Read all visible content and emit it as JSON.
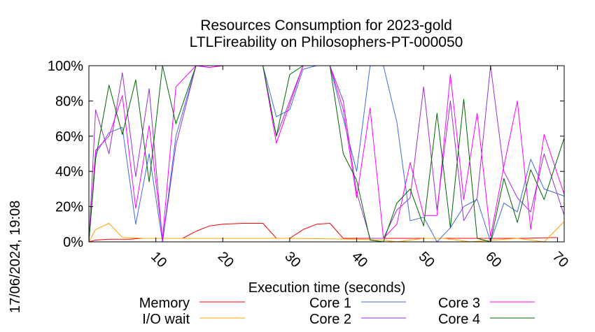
{
  "chart_data": {
    "type": "line",
    "title": [
      "Resources Consumption for 2023-gold",
      "LTLFireability on Philosophers-PT-000050"
    ],
    "xlabel": "Execution time (seconds)",
    "side_label": "17/06/2024, 19:08",
    "xlim": [
      0,
      71
    ],
    "ylim": [
      0,
      100
    ],
    "xticks": [
      10,
      20,
      30,
      40,
      50,
      60,
      70
    ],
    "yticks": [
      0,
      20,
      40,
      60,
      80,
      100
    ],
    "ytick_labels": [
      "0%",
      "20%",
      "40%",
      "60%",
      "80%",
      "100%"
    ],
    "legend_position": "bottom",
    "series": [
      {
        "name": "Memory",
        "color": "#ff0000",
        "points": [
          [
            0,
            0
          ],
          [
            1,
            1
          ],
          [
            3,
            1.5
          ],
          [
            6,
            1.5
          ],
          [
            8,
            2
          ],
          [
            10,
            2
          ],
          [
            12,
            2
          ],
          [
            14,
            2
          ],
          [
            16,
            6
          ],
          [
            18,
            9
          ],
          [
            20,
            10
          ],
          [
            23,
            10.5
          ],
          [
            26,
            10.5
          ],
          [
            28,
            2
          ],
          [
            30,
            2
          ],
          [
            32,
            7
          ],
          [
            34,
            10
          ],
          [
            36,
            10.5
          ],
          [
            38,
            2
          ],
          [
            40,
            2
          ],
          [
            45,
            2
          ],
          [
            50,
            2
          ],
          [
            55,
            2
          ],
          [
            60,
            2
          ],
          [
            65,
            2
          ],
          [
            70,
            2.5
          ]
        ]
      },
      {
        "name": "I/O wait",
        "color": "#ffa500",
        "points": [
          [
            0,
            0
          ],
          [
            1,
            7
          ],
          [
            3,
            10.5
          ],
          [
            5,
            2.5
          ],
          [
            8,
            2
          ],
          [
            12,
            2
          ],
          [
            20,
            2
          ],
          [
            30,
            2
          ],
          [
            40,
            1.5
          ],
          [
            44,
            1
          ],
          [
            46,
            0
          ],
          [
            50,
            2
          ],
          [
            53,
            2
          ],
          [
            57,
            0
          ],
          [
            64,
            2
          ],
          [
            68,
            0
          ],
          [
            71,
            11.5
          ]
        ]
      },
      {
        "name": "Core 1",
        "color": "#4169e1",
        "points": [
          [
            0,
            0
          ],
          [
            1,
            50
          ],
          [
            3,
            62
          ],
          [
            5,
            65
          ],
          [
            7,
            10
          ],
          [
            9,
            50
          ],
          [
            11,
            0
          ],
          [
            13,
            60
          ],
          [
            16,
            100
          ],
          [
            18,
            99
          ],
          [
            20,
            100
          ],
          [
            24,
            100
          ],
          [
            26,
            100
          ],
          [
            28,
            71
          ],
          [
            30,
            75
          ],
          [
            32,
            98
          ],
          [
            34,
            100
          ],
          [
            36,
            100
          ],
          [
            38,
            70
          ],
          [
            40,
            40
          ],
          [
            42,
            100
          ],
          [
            44,
            100
          ],
          [
            46,
            68
          ],
          [
            48,
            12
          ],
          [
            50,
            14
          ],
          [
            52,
            0
          ],
          [
            54,
            8
          ],
          [
            56,
            20
          ],
          [
            58,
            24
          ],
          [
            60,
            0
          ],
          [
            62,
            22
          ],
          [
            64,
            17
          ],
          [
            66,
            47
          ],
          [
            68,
            30
          ],
          [
            71,
            26
          ]
        ]
      },
      {
        "name": "Core 2",
        "color": "#9932cc",
        "points": [
          [
            0,
            0
          ],
          [
            1,
            75
          ],
          [
            3,
            50
          ],
          [
            5,
            96
          ],
          [
            7,
            37
          ],
          [
            9,
            87
          ],
          [
            11,
            0
          ],
          [
            13,
            55
          ],
          [
            16,
            100
          ],
          [
            20,
            100
          ],
          [
            26,
            100
          ],
          [
            28,
            60
          ],
          [
            30,
            80
          ],
          [
            32,
            100
          ],
          [
            36,
            100
          ],
          [
            38,
            80
          ],
          [
            40,
            28
          ],
          [
            42,
            2
          ],
          [
            44,
            2
          ],
          [
            46,
            18
          ],
          [
            48,
            25
          ],
          [
            50,
            88
          ],
          [
            52,
            18
          ],
          [
            54,
            80
          ],
          [
            56,
            12
          ],
          [
            58,
            25
          ],
          [
            60,
            100
          ],
          [
            62,
            40
          ],
          [
            64,
            25
          ],
          [
            66,
            17
          ],
          [
            68,
            50
          ],
          [
            71,
            15
          ]
        ]
      },
      {
        "name": "Core 3",
        "color": "#ff00ff",
        "points": [
          [
            0,
            0
          ],
          [
            1,
            52
          ],
          [
            3,
            60
          ],
          [
            5,
            83
          ],
          [
            7,
            19
          ],
          [
            9,
            66
          ],
          [
            11,
            2
          ],
          [
            13,
            88
          ],
          [
            16,
            100
          ],
          [
            18,
            99
          ],
          [
            20,
            100
          ],
          [
            26,
            100
          ],
          [
            28,
            56
          ],
          [
            30,
            78
          ],
          [
            32,
            100
          ],
          [
            36,
            100
          ],
          [
            38,
            75
          ],
          [
            40,
            25
          ],
          [
            42,
            76
          ],
          [
            44,
            2
          ],
          [
            46,
            10
          ],
          [
            48,
            45
          ],
          [
            50,
            15
          ],
          [
            52,
            15
          ],
          [
            54,
            95
          ],
          [
            56,
            24
          ],
          [
            58,
            73
          ],
          [
            60,
            3
          ],
          [
            62,
            43
          ],
          [
            64,
            80
          ],
          [
            66,
            7
          ],
          [
            68,
            61
          ],
          [
            71,
            27
          ]
        ]
      },
      {
        "name": "Core 4",
        "color": "#006400",
        "points": [
          [
            0,
            0
          ],
          [
            1,
            47
          ],
          [
            3,
            89
          ],
          [
            5,
            61
          ],
          [
            7,
            92
          ],
          [
            9,
            34
          ],
          [
            11,
            100
          ],
          [
            13,
            67
          ],
          [
            16,
            100
          ],
          [
            20,
            100
          ],
          [
            26,
            100
          ],
          [
            28,
            60
          ],
          [
            30,
            95
          ],
          [
            32,
            100
          ],
          [
            36,
            100
          ],
          [
            38,
            50
          ],
          [
            40,
            35
          ],
          [
            42,
            1
          ],
          [
            44,
            0
          ],
          [
            46,
            22
          ],
          [
            48,
            30
          ],
          [
            50,
            9
          ],
          [
            52,
            73
          ],
          [
            54,
            8
          ],
          [
            56,
            81
          ],
          [
            58,
            2
          ],
          [
            60,
            0
          ],
          [
            62,
            36
          ],
          [
            64,
            11
          ],
          [
            66,
            41
          ],
          [
            68,
            24
          ],
          [
            71,
            59
          ]
        ]
      }
    ]
  }
}
